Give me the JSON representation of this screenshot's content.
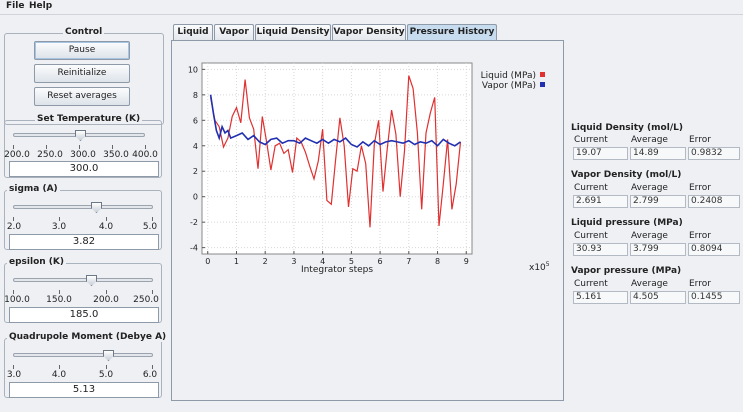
{
  "menu": [
    "File",
    "Help"
  ],
  "control": {
    "title": "Control",
    "buttons": [
      "Pause",
      "Reinitialize",
      "Reset averages"
    ]
  },
  "temperature": {
    "title": "Set Temperature (K)",
    "ticks": [
      "200.0",
      "250.0",
      "300.0",
      "350.0",
      "400.0"
    ],
    "value": "300.0",
    "min": 200,
    "max": 400,
    "current": 300
  },
  "sigma": {
    "title": "sigma (A)",
    "ticks": [
      "2.0",
      "3.0",
      "4.0",
      "5.0"
    ],
    "value": "3.82",
    "min": 2,
    "max": 5,
    "current": 3.82
  },
  "epsilon": {
    "title": "epsilon (K)",
    "ticks": [
      "100.0",
      "150.0",
      "200.0",
      "250.0"
    ],
    "value": "185.0",
    "min": 100,
    "max": 250,
    "current": 185
  },
  "quadrupole": {
    "title": "Quadrupole Moment (Debye A)",
    "ticks": [
      "3.0",
      "4.0",
      "5.0",
      "6.0"
    ],
    "value": "5.13",
    "min": 3,
    "max": 6,
    "current": 5.13
  },
  "tabs": [
    "Liquid",
    "Vapor",
    "Liquid Density",
    "Vapor Density",
    "Pressure History"
  ],
  "selected_tab": "Pressure History",
  "stats": [
    {
      "title": "Liquid Density (mol/L)",
      "current": "19.07",
      "average": "14.89",
      "error": "0.9832"
    },
    {
      "title": "Vapor Density (mol/L)",
      "current": "2.691",
      "average": "2.799",
      "error": "0.2408"
    },
    {
      "title": "Liquid pressure (MPa)",
      "current": "30.93",
      "average": "3.799",
      "error": "0.8094"
    },
    {
      "title": "Vapor pressure (MPa)",
      "current": "5.161",
      "average": "4.505",
      "error": "0.1455"
    }
  ],
  "stat_headers": {
    "current": "Current",
    "average": "Average",
    "error": "Error"
  },
  "chart_data": {
    "type": "line",
    "xlabel": "Integrator steps",
    "x_multiplier": "x10",
    "x_multiplier_exp": "5",
    "ylabel": "",
    "xlim": [
      -0.2,
      9.2
    ],
    "ylim": [
      -4.5,
      10.5
    ],
    "xticks": [
      "0",
      "1",
      "2",
      "3",
      "4",
      "5",
      "6",
      "7",
      "8",
      "9"
    ],
    "yticks": [
      "-4",
      "-2",
      "0",
      "2",
      "4",
      "6",
      "8",
      "10"
    ],
    "grid": true,
    "legend": "top-right",
    "series": [
      {
        "name": "Liquid (MPa)",
        "color": "#e03030",
        "x": [
          0.1,
          0.25,
          0.4,
          0.55,
          0.7,
          0.85,
          1.0,
          1.15,
          1.3,
          1.45,
          1.6,
          1.75,
          1.9,
          2.05,
          2.2,
          2.35,
          2.5,
          2.65,
          2.8,
          2.95,
          3.1,
          3.25,
          3.4,
          3.55,
          3.7,
          3.85,
          4.0,
          4.15,
          4.3,
          4.45,
          4.6,
          4.75,
          4.9,
          5.05,
          5.2,
          5.35,
          5.5,
          5.65,
          5.8,
          5.95,
          6.1,
          6.25,
          6.4,
          6.55,
          6.7,
          6.85,
          7.0,
          7.15,
          7.3,
          7.45,
          7.6,
          7.75,
          7.9,
          8.05,
          8.2,
          8.35,
          8.5,
          8.65,
          8.8
        ],
        "y": [
          7.8,
          6.0,
          5.5,
          3.9,
          4.6,
          6.3,
          7.0,
          5.8,
          9.2,
          6.2,
          5.3,
          2.2,
          6.3,
          4.3,
          2.1,
          4.0,
          4.2,
          3.4,
          3.7,
          1.9,
          4.6,
          4.3,
          3.5,
          2.4,
          1.4,
          2.8,
          5.3,
          -0.3,
          -0.6,
          2.9,
          6.2,
          4.0,
          -0.8,
          2.2,
          2.0,
          4.0,
          2.6,
          -2.4,
          4.1,
          6.0,
          0.4,
          3.8,
          6.8,
          4.9,
          0.0,
          3.6,
          9.5,
          8.5,
          5.0,
          -1.0,
          5.0,
          6.6,
          7.8,
          -2.3,
          1.0,
          4.5,
          -1.0,
          1.0,
          4.3
        ]
      },
      {
        "name": "Vapor (MPa)",
        "color": "#2030b0",
        "x": [
          0.1,
          0.2,
          0.3,
          0.4,
          0.5,
          0.6,
          0.7,
          0.8,
          1.0,
          1.2,
          1.4,
          1.6,
          1.8,
          2.0,
          2.2,
          2.4,
          2.6,
          2.8,
          3.0,
          3.2,
          3.4,
          3.6,
          3.8,
          4.0,
          4.2,
          4.4,
          4.6,
          4.8,
          5.0,
          5.2,
          5.4,
          5.6,
          5.8,
          6.0,
          6.2,
          6.4,
          6.6,
          6.8,
          7.0,
          7.2,
          7.4,
          7.6,
          7.8,
          8.0,
          8.2,
          8.4,
          8.6,
          8.8
        ],
        "y": [
          8.0,
          6.5,
          5.2,
          4.6,
          5.5,
          5.0,
          5.2,
          4.6,
          4.8,
          5.0,
          4.5,
          4.8,
          4.3,
          4.1,
          4.5,
          4.6,
          4.2,
          4.4,
          4.4,
          4.2,
          4.6,
          4.4,
          4.2,
          4.5,
          4.2,
          4.5,
          4.3,
          4.6,
          4.1,
          3.9,
          4.3,
          4.0,
          4.4,
          4.1,
          4.3,
          4.4,
          4.3,
          4.2,
          4.4,
          4.1,
          4.3,
          4.2,
          4.4,
          4.0,
          4.5,
          4.2,
          4.0,
          4.3
        ]
      }
    ]
  }
}
